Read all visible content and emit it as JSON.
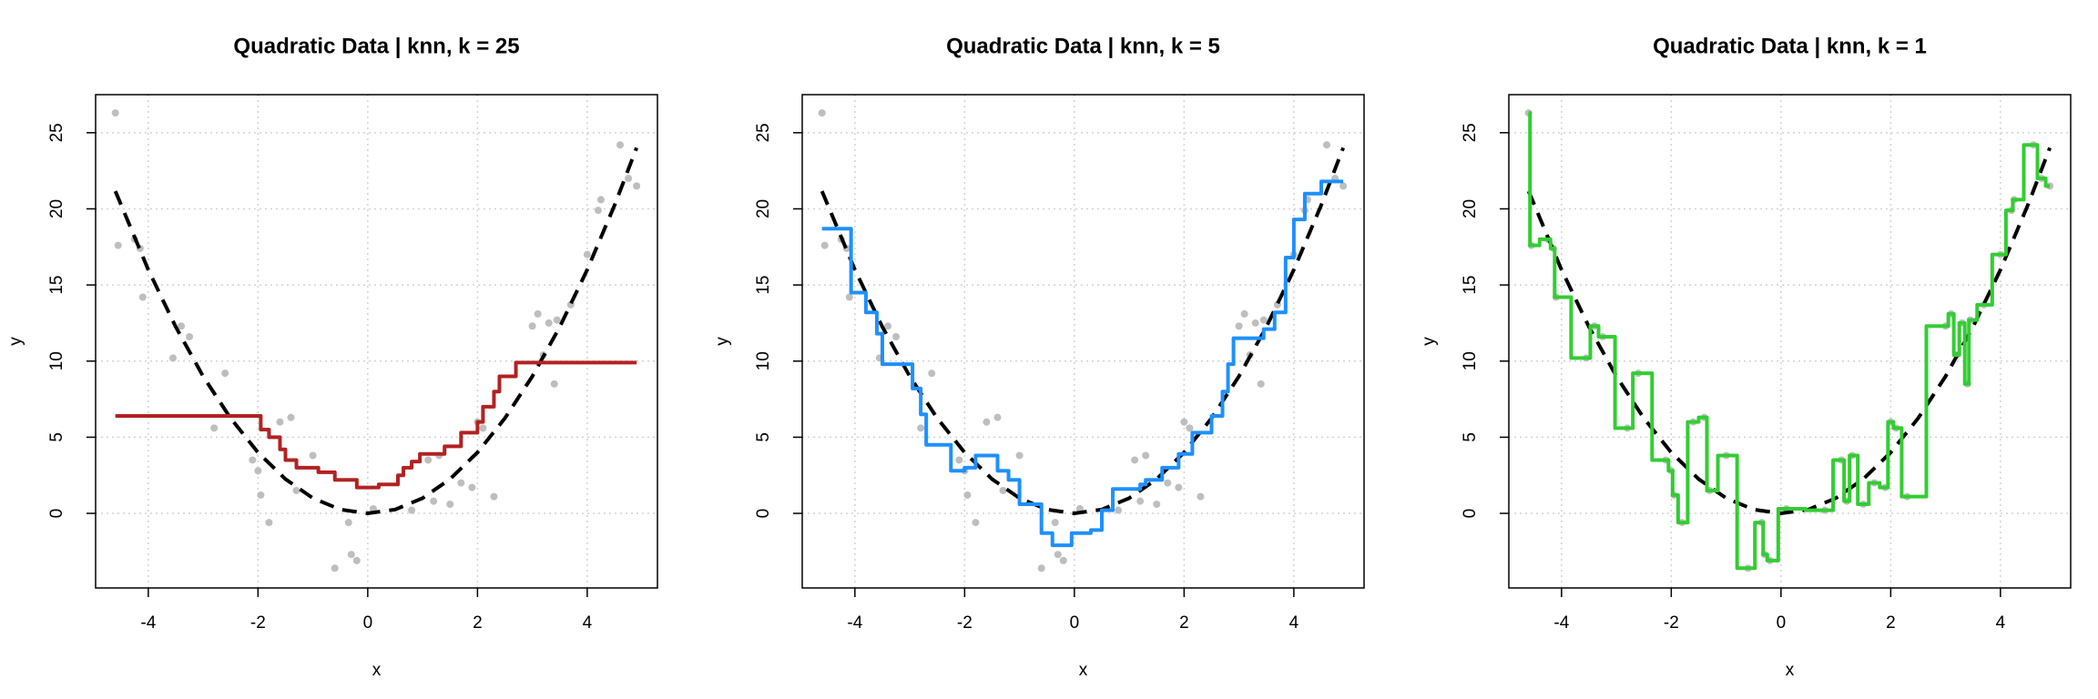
{
  "chart_data": [
    {
      "type": "line",
      "title": "Quadratic Data | knn, k = 25",
      "xlabel": "x",
      "ylabel": "y",
      "xlim": [
        -4.96,
        5.28
      ],
      "ylim": [
        -4.9,
        27.5
      ],
      "xticks": [
        -4,
        -2,
        0,
        2,
        4
      ],
      "yticks": [
        0,
        5,
        10,
        15,
        20,
        25
      ],
      "grid": true,
      "series": [
        {
          "type": "scatter",
          "color": "#bebebe",
          "x": [
            -4.6,
            -4.55,
            -4.25,
            -4.15,
            -4.1,
            -3.55,
            -3.4,
            -3.25,
            -2.8,
            -2.6,
            -2.1,
            -2.0,
            -1.95,
            -1.8,
            -1.6,
            -1.4,
            -1.3,
            -1.0,
            -0.6,
            -0.35,
            -0.3,
            -0.2,
            0.1,
            0.8,
            1.1,
            1.2,
            1.3,
            1.5,
            1.7,
            1.9,
            2.0,
            2.1,
            2.3,
            3.0,
            3.1,
            3.2,
            3.3,
            3.4,
            3.45,
            3.7,
            4.0,
            4.2,
            4.25,
            4.6,
            4.75,
            4.9
          ],
          "values": [
            26.3,
            17.6,
            18.0,
            17.4,
            14.2,
            10.2,
            12.3,
            11.6,
            5.6,
            9.2,
            3.5,
            2.8,
            1.2,
            -0.6,
            6.0,
            6.3,
            1.5,
            3.8,
            -3.6,
            -0.6,
            -2.7,
            -3.1,
            0.3,
            0.2,
            3.5,
            0.8,
            3.8,
            0.6,
            2.0,
            1.7,
            6.0,
            5.6,
            1.1,
            12.3,
            13.1,
            10.4,
            12.5,
            8.5,
            12.7,
            13.7,
            17.0,
            19.9,
            20.6,
            24.2,
            22.0,
            21.5
          ]
        },
        {
          "type": "line",
          "color": "#000000",
          "dash": true,
          "x": [
            -4.6,
            -4,
            -3.5,
            -3,
            -2.5,
            -2,
            -1.5,
            -1,
            -0.5,
            0,
            0.5,
            1,
            1.5,
            2,
            2.5,
            3,
            3.5,
            4,
            4.5,
            4.9
          ],
          "values": [
            21.16,
            16,
            12.25,
            9,
            6.25,
            4,
            2.25,
            1,
            0.25,
            0,
            0.25,
            1,
            2.25,
            4,
            6.25,
            9,
            12.25,
            16,
            20.25,
            24.01
          ]
        },
        {
          "type": "step",
          "step": "post",
          "color": "#b22222",
          "x": [
            -4.6,
            -1.95,
            -1.8,
            -1.6,
            -1.5,
            -1.3,
            -0.9,
            -0.6,
            -0.2,
            0.2,
            0.55,
            0.65,
            0.8,
            0.95,
            1.4,
            1.7,
            2.0,
            2.1,
            2.3,
            2.4,
            2.7,
            4.9
          ],
          "values": [
            6.4,
            5.5,
            5.0,
            4.2,
            3.5,
            3.0,
            2.7,
            2.2,
            1.7,
            1.9,
            2.5,
            3.0,
            3.4,
            3.9,
            4.4,
            5.3,
            6.0,
            7.0,
            8.0,
            9.0,
            9.9,
            9.9
          ]
        }
      ]
    },
    {
      "type": "line",
      "title": "Quadratic Data | knn, k = 5",
      "xlabel": "x",
      "ylabel": "y",
      "xlim": [
        -4.96,
        5.28
      ],
      "ylim": [
        -4.9,
        27.5
      ],
      "xticks": [
        -4,
        -2,
        0,
        2,
        4
      ],
      "yticks": [
        0,
        5,
        10,
        15,
        20,
        25
      ],
      "grid": true,
      "series": [
        {
          "type": "scatter",
          "color": "#bebebe",
          "x": [
            -4.6,
            -4.55,
            -4.25,
            -4.15,
            -4.1,
            -3.55,
            -3.4,
            -3.25,
            -2.8,
            -2.6,
            -2.1,
            -2.0,
            -1.95,
            -1.8,
            -1.6,
            -1.4,
            -1.3,
            -1.0,
            -0.6,
            -0.35,
            -0.3,
            -0.2,
            0.1,
            0.8,
            1.1,
            1.2,
            1.3,
            1.5,
            1.7,
            1.9,
            2.0,
            2.1,
            2.3,
            3.0,
            3.1,
            3.2,
            3.3,
            3.4,
            3.45,
            3.7,
            4.0,
            4.2,
            4.25,
            4.6,
            4.75,
            4.9
          ],
          "values": [
            26.3,
            17.6,
            18.0,
            17.4,
            14.2,
            10.2,
            12.3,
            11.6,
            5.6,
            9.2,
            3.5,
            2.8,
            1.2,
            -0.6,
            6.0,
            6.3,
            1.5,
            3.8,
            -3.6,
            -0.6,
            -2.7,
            -3.1,
            0.3,
            0.2,
            3.5,
            0.8,
            3.8,
            0.6,
            2.0,
            1.7,
            6.0,
            5.6,
            1.1,
            12.3,
            13.1,
            10.4,
            12.5,
            8.5,
            12.7,
            13.7,
            17.0,
            19.9,
            20.6,
            24.2,
            22.0,
            21.5
          ]
        },
        {
          "type": "line",
          "color": "#000000",
          "dash": true,
          "x": [
            -4.6,
            -4,
            -3.5,
            -3,
            -2.5,
            -2,
            -1.5,
            -1,
            -0.5,
            0,
            0.5,
            1,
            1.5,
            2,
            2.5,
            3,
            3.5,
            4,
            4.5,
            4.9
          ],
          "values": [
            21.16,
            16,
            12.25,
            9,
            6.25,
            4,
            2.25,
            1,
            0.25,
            0,
            0.25,
            1,
            2.25,
            4,
            6.25,
            9,
            12.25,
            16,
            20.25,
            24.01
          ]
        },
        {
          "type": "step",
          "step": "post",
          "color": "#1e90ff",
          "x": [
            -4.6,
            -4.07,
            -3.8,
            -3.6,
            -3.5,
            -2.95,
            -2.8,
            -2.7,
            -2.25,
            -2.0,
            -1.8,
            -1.4,
            -1.2,
            -1.0,
            -0.6,
            -0.4,
            -0.05,
            0.3,
            0.5,
            0.7,
            1.2,
            1.3,
            1.6,
            1.9,
            2.15,
            2.5,
            2.7,
            2.8,
            2.9,
            3.45,
            3.65,
            3.85,
            4.0,
            4.2,
            4.5,
            4.9
          ],
          "values": [
            18.7,
            14.5,
            13.2,
            11.8,
            9.8,
            8.2,
            6.5,
            4.5,
            2.8,
            3.0,
            3.8,
            2.8,
            2.2,
            0.6,
            -1.3,
            -2.1,
            -1.3,
            -1.1,
            0.2,
            1.6,
            1.9,
            2.2,
            3.0,
            3.9,
            5.3,
            6.4,
            8.0,
            9.8,
            11.5,
            12.1,
            13.2,
            16.8,
            19.3,
            21.0,
            21.8,
            21.8
          ]
        }
      ]
    },
    {
      "type": "line",
      "title": "Quadratic Data | knn, k = 1",
      "xlabel": "x",
      "ylabel": "y",
      "xlim": [
        -4.96,
        5.28
      ],
      "ylim": [
        -4.9,
        27.5
      ],
      "xticks": [
        -4,
        -2,
        0,
        2,
        4
      ],
      "yticks": [
        0,
        5,
        10,
        15,
        20,
        25
      ],
      "grid": true,
      "series": [
        {
          "type": "scatter",
          "color": "#bebebe",
          "x": [
            -4.6,
            -4.55,
            -4.25,
            -4.15,
            -4.1,
            -3.55,
            -3.4,
            -3.25,
            -2.8,
            -2.6,
            -2.1,
            -2.0,
            -1.95,
            -1.8,
            -1.6,
            -1.4,
            -1.3,
            -1.0,
            -0.6,
            -0.35,
            -0.3,
            -0.2,
            0.1,
            0.8,
            1.1,
            1.2,
            1.3,
            1.5,
            1.7,
            1.9,
            2.0,
            2.1,
            2.3,
            3.0,
            3.1,
            3.2,
            3.3,
            3.4,
            3.45,
            3.7,
            4.0,
            4.2,
            4.25,
            4.6,
            4.75,
            4.9
          ],
          "values": [
            26.3,
            17.6,
            18.0,
            17.4,
            14.2,
            10.2,
            12.3,
            11.6,
            5.6,
            9.2,
            3.5,
            2.8,
            1.2,
            -0.6,
            6.0,
            6.3,
            1.5,
            3.8,
            -3.6,
            -0.6,
            -2.7,
            -3.1,
            0.3,
            0.2,
            3.5,
            0.8,
            3.8,
            0.6,
            2.0,
            1.7,
            6.0,
            5.6,
            1.1,
            12.3,
            13.1,
            10.4,
            12.5,
            8.5,
            12.7,
            13.7,
            17.0,
            19.9,
            20.6,
            24.2,
            22.0,
            21.5
          ]
        },
        {
          "type": "line",
          "color": "#000000",
          "dash": true,
          "x": [
            -4.6,
            -4,
            -3.5,
            -3,
            -2.5,
            -2,
            -1.5,
            -1,
            -0.5,
            0,
            0.5,
            1,
            1.5,
            2,
            2.5,
            3,
            3.5,
            4,
            4.5,
            4.9
          ],
          "values": [
            21.16,
            16,
            12.25,
            9,
            6.25,
            4,
            2.25,
            1,
            0.25,
            0,
            0.25,
            1,
            2.25,
            4,
            6.25,
            9,
            12.25,
            16,
            20.25,
            24.01
          ]
        },
        {
          "type": "step",
          "step": "mid",
          "color": "#32cd32",
          "x": [
            -4.6,
            -4.55,
            -4.25,
            -4.15,
            -4.1,
            -3.55,
            -3.4,
            -3.25,
            -2.8,
            -2.6,
            -2.1,
            -2.0,
            -1.95,
            -1.8,
            -1.6,
            -1.4,
            -1.3,
            -1.0,
            -0.6,
            -0.35,
            -0.3,
            -0.2,
            0.1,
            0.8,
            1.1,
            1.2,
            1.3,
            1.5,
            1.7,
            1.9,
            2.0,
            2.1,
            2.3,
            3.0,
            3.1,
            3.2,
            3.3,
            3.4,
            3.45,
            3.7,
            4.0,
            4.2,
            4.25,
            4.6,
            4.75,
            4.9
          ],
          "values": [
            26.3,
            17.6,
            18.0,
            17.4,
            14.2,
            10.2,
            12.3,
            11.6,
            5.6,
            9.2,
            3.5,
            2.8,
            1.2,
            -0.6,
            6.0,
            6.3,
            1.5,
            3.8,
            -3.6,
            -0.6,
            -2.7,
            -3.1,
            0.3,
            0.2,
            3.5,
            0.8,
            3.8,
            0.6,
            2.0,
            1.7,
            6.0,
            5.6,
            1.1,
            12.3,
            13.1,
            10.4,
            12.5,
            8.5,
            12.7,
            13.7,
            17.0,
            19.9,
            20.6,
            24.2,
            22.0,
            21.5
          ]
        }
      ]
    }
  ]
}
